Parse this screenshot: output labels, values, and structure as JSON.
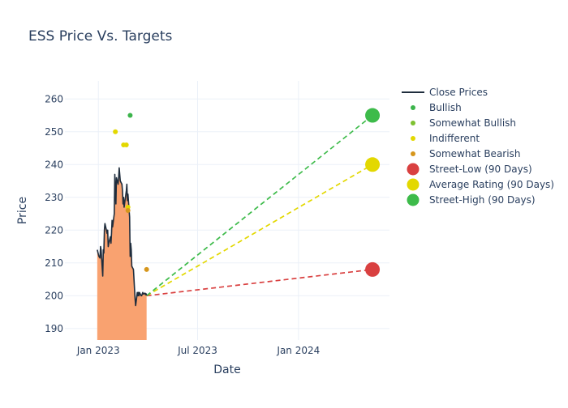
{
  "chart_data": {
    "type": "line",
    "title": "ESS Price Vs. Targets",
    "xlabel": "Date",
    "ylabel": "Price",
    "x_range": [
      "2022-11-01",
      "2024-06-15"
    ],
    "ylim": [
      186.5,
      265.5
    ],
    "x_ticks": [
      {
        "date": "2023-01-01",
        "label": "Jan 2023"
      },
      {
        "date": "2023-07-01",
        "label": "Jul 2023"
      },
      {
        "date": "2024-01-01",
        "label": "Jan 2024"
      }
    ],
    "y_ticks": [
      190,
      200,
      210,
      220,
      230,
      240,
      250,
      260
    ],
    "close_prices": {
      "name": "Close Prices",
      "line_color": "#1f2d3d",
      "fill_color": "#f9a270",
      "dates": [
        "2022-12-30",
        "2023-01-02",
        "2023-01-04",
        "2023-01-05",
        "2023-01-06",
        "2023-01-09",
        "2023-01-10",
        "2023-01-11",
        "2023-01-12",
        "2023-01-13",
        "2023-01-17",
        "2023-01-18",
        "2023-01-19",
        "2023-01-20",
        "2023-01-23",
        "2023-01-24",
        "2023-01-25",
        "2023-01-26",
        "2023-01-27",
        "2023-01-30",
        "2023-01-31",
        "2023-02-01",
        "2023-02-02",
        "2023-02-03",
        "2023-02-06",
        "2023-02-07",
        "2023-02-08",
        "2023-02-09",
        "2023-02-10",
        "2023-02-13",
        "2023-02-14",
        "2023-02-15",
        "2023-02-16",
        "2023-02-17",
        "2023-02-21",
        "2023-02-22",
        "2023-02-23",
        "2023-02-24",
        "2023-02-27",
        "2023-02-28",
        "2023-03-01",
        "2023-03-02",
        "2023-03-03",
        "2023-03-06",
        "2023-03-07",
        "2023-03-08",
        "2023-03-09",
        "2023-03-10",
        "2023-03-13",
        "2023-03-14",
        "2023-03-15",
        "2023-03-16",
        "2023-03-17",
        "2023-03-20",
        "2023-03-21",
        "2023-03-22",
        "2023-03-23",
        "2023-03-24",
        "2023-03-27",
        "2023-03-28",
        "2023-03-29",
        "2023-03-30"
      ],
      "values": [
        214,
        212,
        211.5,
        215,
        214,
        206,
        214,
        213,
        220,
        222,
        219,
        220,
        215,
        216,
        218,
        216,
        219,
        223,
        221,
        225,
        237,
        232,
        228,
        236,
        234,
        236,
        239,
        237,
        235,
        234,
        232,
        228,
        230,
        227,
        232,
        234,
        229,
        231,
        224,
        212,
        216,
        214,
        209,
        208,
        205,
        202,
        199,
        197,
        201,
        200,
        201,
        200,
        201,
        200,
        200,
        200.5,
        201,
        200.5,
        200.8,
        200.3,
        200.6,
        200.1
      ]
    },
    "rating_points": [
      {
        "name": "Bullish",
        "color": "#3cb44b",
        "points": [
          {
            "date": "2023-02-28",
            "price": 255
          }
        ]
      },
      {
        "name": "Somewhat Bullish",
        "color": "#7ec131",
        "points": []
      },
      {
        "name": "Indifferent",
        "color": "#e3d800",
        "points": [
          {
            "date": "2023-02-01",
            "price": 250
          },
          {
            "date": "2023-02-16",
            "price": 246
          },
          {
            "date": "2023-02-21",
            "price": 246
          },
          {
            "date": "2023-02-24",
            "price": 227
          }
        ]
      },
      {
        "name": "Somewhat Bearish",
        "color": "#d6961c",
        "points": [
          {
            "date": "2023-02-24",
            "price": 226
          },
          {
            "date": "2023-03-30",
            "price": 208
          }
        ]
      }
    ],
    "target_lines": {
      "start": {
        "date": "2023-03-30",
        "price": 200
      },
      "end_date": "2024-05-15",
      "targets": [
        {
          "name": "Street-Low (90 Days)",
          "price": 208,
          "color": "#d94040"
        },
        {
          "name": "Average Rating (90 Days)",
          "price": 240,
          "color": "#e3d800"
        },
        {
          "name": "Street-High (90 Days)",
          "price": 255,
          "color": "#3dbb4a"
        }
      ]
    },
    "legend": {
      "placement": "top-right",
      "entries": [
        {
          "label": "Close Prices",
          "kind": "line",
          "color": "#1f2d3d"
        },
        {
          "label": "Bullish",
          "kind": "small-dot",
          "color": "#3cb44b"
        },
        {
          "label": "Somewhat Bullish",
          "kind": "small-dot",
          "color": "#7ec131"
        },
        {
          "label": "Indifferent",
          "kind": "small-dot",
          "color": "#e3d800"
        },
        {
          "label": "Somewhat Bearish",
          "kind": "small-dot",
          "color": "#d6961c"
        },
        {
          "label": "Street-Low (90 Days)",
          "kind": "big-dot",
          "color": "#d94040"
        },
        {
          "label": "Average Rating (90 Days)",
          "kind": "big-dot",
          "color": "#e3d800"
        },
        {
          "label": "Street-High (90 Days)",
          "kind": "big-dot",
          "color": "#3dbb4a"
        }
      ]
    }
  }
}
